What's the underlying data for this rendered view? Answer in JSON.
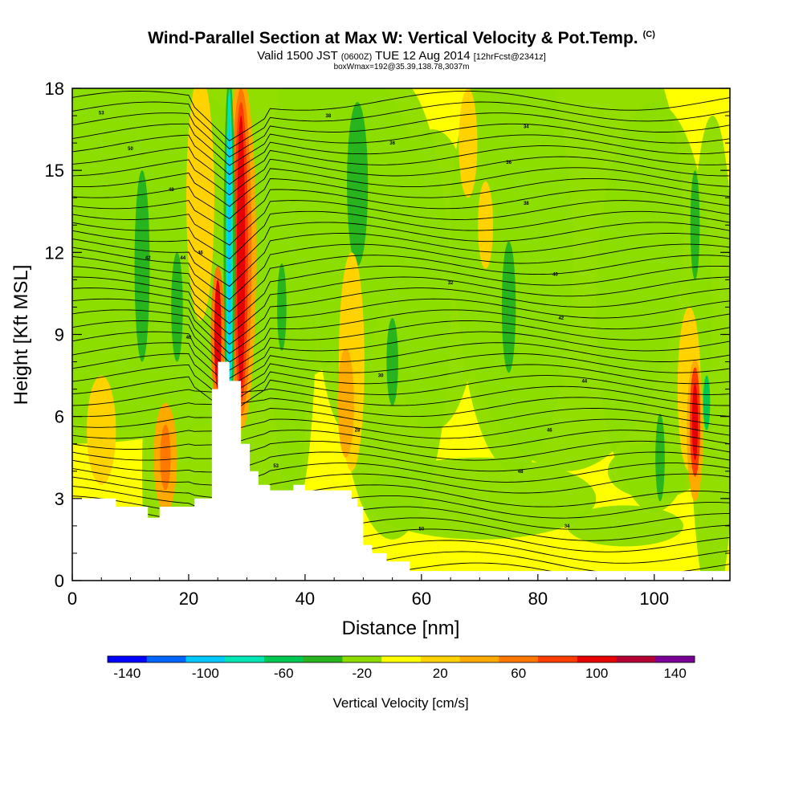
{
  "header": {
    "title": "Wind-Parallel Section at Max W: Vertical Velocity & Pot.Temp.",
    "title_mark": "(C)",
    "valid_a": "Valid 1500 JST",
    "valid_zone": "(0600Z)",
    "valid_b": "TUE 12 Aug 2014",
    "valid_fcst": "[12hrFcst@2341z]",
    "box": "boxWmax=192@35.39,138.78,3037m"
  },
  "chart_data": {
    "type": "heatmap",
    "xlabel": "Distance [nm]",
    "ylabel": "Height [Kft MSL]",
    "xlim": [
      0,
      113
    ],
    "ylim": [
      0,
      18
    ],
    "xticks": [
      "0",
      "20",
      "40",
      "60",
      "80",
      "100"
    ],
    "yticks": [
      "0",
      "3",
      "6",
      "9",
      "12",
      "15",
      "18"
    ],
    "terrain_heights_kft": [
      [
        0,
        3.0
      ],
      [
        7.5,
        3.0
      ],
      [
        7.5,
        2.7
      ],
      [
        13,
        2.7
      ],
      [
        13,
        2.3
      ],
      [
        15,
        2.3
      ],
      [
        15,
        2.7
      ],
      [
        21,
        2.7
      ],
      [
        21,
        3.0
      ],
      [
        24,
        3.0
      ],
      [
        24,
        7.0
      ],
      [
        25,
        7.0
      ],
      [
        25,
        8.0
      ],
      [
        27,
        8.0
      ],
      [
        27,
        7.3
      ],
      [
        29,
        7.3
      ],
      [
        29,
        5.0
      ],
      [
        30.5,
        5.0
      ],
      [
        30.5,
        4.0
      ],
      [
        32,
        4.0
      ],
      [
        32,
        3.5
      ],
      [
        34,
        3.5
      ],
      [
        34,
        3.3
      ],
      [
        38,
        3.3
      ],
      [
        38,
        3.5
      ],
      [
        40,
        3.5
      ],
      [
        40,
        3.3
      ],
      [
        48,
        3.3
      ],
      [
        48,
        3.0
      ],
      [
        49,
        3.0
      ],
      [
        49,
        2.7
      ],
      [
        50,
        2.7
      ],
      [
        50,
        1.3
      ],
      [
        51.5,
        1.3
      ],
      [
        51.5,
        1.0
      ],
      [
        54,
        1.0
      ],
      [
        54,
        0.7
      ],
      [
        58,
        0.7
      ],
      [
        58,
        0.35
      ],
      [
        113,
        0.35
      ]
    ],
    "colorbar": {
      "label": "Vertical Velocity [cm/s]",
      "ticks": [
        "-140",
        "-100",
        "-60",
        "-20",
        "20",
        "60",
        "100",
        "140"
      ],
      "colors": [
        "#0000ff",
        "#0066ff",
        "#00c8ff",
        "#00e6b4",
        "#00c850",
        "#28b41e",
        "#8cdc00",
        "#ffff00",
        "#ffd200",
        "#ffaa00",
        "#ff7800",
        "#ff3c00",
        "#e60000",
        "#b40032",
        "#780096"
      ]
    },
    "contour_labels": [
      "53",
      "50",
      "48",
      "46",
      "44",
      "42",
      "40",
      "38",
      "36",
      "34",
      "32",
      "30",
      "28"
    ]
  }
}
